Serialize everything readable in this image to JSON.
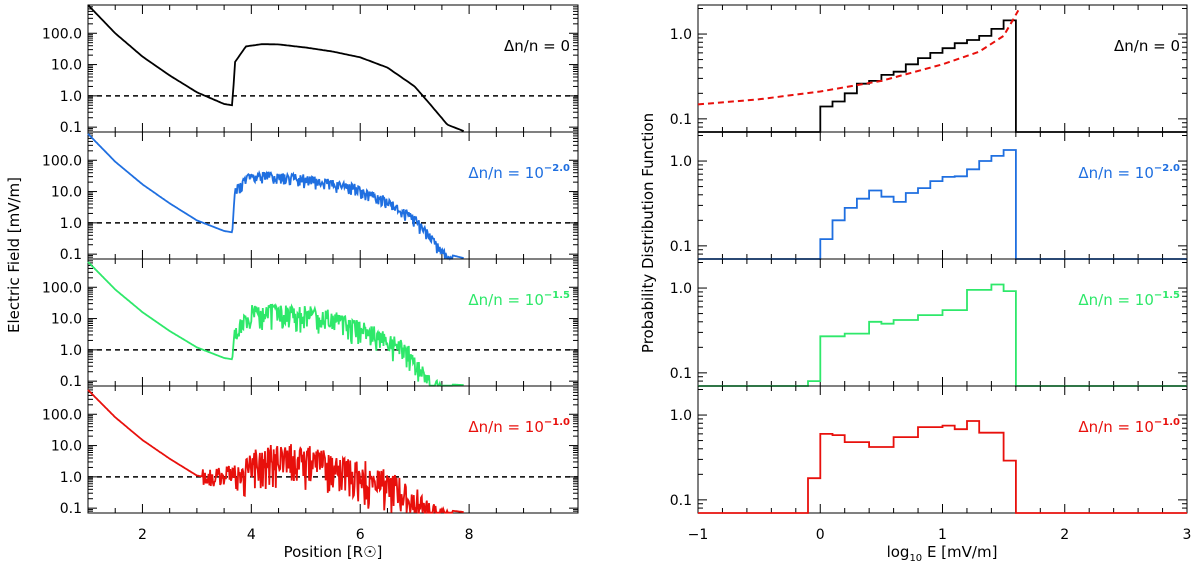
{
  "colors": {
    "black": "#000000",
    "blue": "#1f6fe0",
    "green": "#2ee86a",
    "red": "#e8100c",
    "red_dashed": "#e8100c"
  },
  "left": {
    "ylabel": "Electric Field [mV/m]",
    "xlabel_prefix": "Position [R",
    "xlabel_suffix": "]",
    "xticks": [
      "2",
      "4",
      "6",
      "8"
    ],
    "yticks": [
      "100.0",
      "10.0",
      "1.0",
      "0.1"
    ],
    "panel_labels": [
      {
        "prefix": "Δn/n = ",
        "value": "0",
        "exp": ""
      },
      {
        "prefix": "Δn/n = ",
        "value": "10",
        "exp": "−2.0"
      },
      {
        "prefix": "Δn/n = ",
        "value": "10",
        "exp": "−1.5"
      },
      {
        "prefix": "Δn/n = ",
        "value": "10",
        "exp": "−1.0"
      }
    ]
  },
  "right": {
    "ylabel": "Probability Distribution Function",
    "xlabel_pre": "log",
    "xlabel_sub": "10",
    "xlabel_post": " E [mV/m]",
    "xticks": [
      "−1",
      "0",
      "1",
      "2",
      "3"
    ],
    "yticks": [
      "1.0",
      "0.1"
    ],
    "panel_labels": [
      {
        "prefix": "Δn/n = ",
        "value": "0",
        "exp": ""
      },
      {
        "prefix": "Δn/n = ",
        "value": "10",
        "exp": "−2.0"
      },
      {
        "prefix": "Δn/n = ",
        "value": "10",
        "exp": "−1.5"
      },
      {
        "prefix": "Δn/n = ",
        "value": "10",
        "exp": "−1.0"
      }
    ]
  },
  "chart_data": [
    {
      "type": "line",
      "panel": "left",
      "xlabel": "Position [R☉]",
      "ylabel": "Electric Field [mV/m]",
      "xlim": [
        1,
        10
      ],
      "ylim": [
        0.07,
        800
      ],
      "yscale": "log",
      "reference_line": {
        "y": 1.0,
        "style": "dashed"
      },
      "series": [
        {
          "name": "Δn/n = 0",
          "color": "#000000",
          "noise": 0,
          "x": [
            1.0,
            1.5,
            2.0,
            2.5,
            3.0,
            3.5,
            3.65,
            3.7,
            3.9,
            4.2,
            4.5,
            5.0,
            5.5,
            6.0,
            6.5,
            7.0,
            7.3,
            7.6,
            7.9
          ],
          "y": [
            800,
            100,
            18,
            4.5,
            1.3,
            0.55,
            0.5,
            12,
            38,
            45,
            44,
            35,
            26,
            17,
            8,
            2,
            0.5,
            0.12,
            0.075
          ]
        },
        {
          "name": "Δn/n = 10^-2.0",
          "color": "#1f6fe0",
          "noise": 0.25,
          "x": [
            1.0,
            1.5,
            2.0,
            2.5,
            3.0,
            3.5,
            3.65,
            3.7,
            3.9,
            4.2,
            4.5,
            5.0,
            5.5,
            6.0,
            6.5,
            7.0,
            7.3,
            7.6,
            7.9
          ],
          "y": [
            700,
            90,
            17,
            4.2,
            1.2,
            0.55,
            0.5,
            12,
            35,
            42,
            40,
            32,
            24,
            15,
            6,
            1.8,
            0.4,
            0.1,
            0.075
          ]
        },
        {
          "name": "Δn/n = 10^-1.5",
          "color": "#2ee86a",
          "noise": 0.55,
          "x": [
            1.0,
            1.5,
            2.0,
            2.5,
            3.0,
            3.5,
            3.65,
            3.7,
            4.0,
            4.5,
            5.0,
            5.5,
            6.0,
            6.5,
            6.9,
            7.2,
            7.5,
            7.9
          ],
          "y": [
            650,
            85,
            16,
            4,
            1.2,
            0.55,
            0.5,
            6,
            25,
            28,
            22,
            15,
            8,
            3.5,
            1.5,
            0.2,
            0.08,
            0.075
          ]
        },
        {
          "name": "Δn/n = 10^-1.0",
          "color": "#e8100c",
          "noise": 0.85,
          "x": [
            1.0,
            1.5,
            2.0,
            2.5,
            3.0,
            3.3,
            3.6,
            4.0,
            4.5,
            5.0,
            5.5,
            6.0,
            6.5,
            6.9,
            7.2,
            7.5,
            7.9
          ],
          "y": [
            600,
            80,
            15,
            3.8,
            1.1,
            0.9,
            1.2,
            6,
            10,
            8,
            6,
            3,
            1.5,
            0.6,
            0.2,
            0.09,
            0.075
          ]
        }
      ]
    },
    {
      "type": "line",
      "panel": "right",
      "xlabel": "log10 E [mV/m]",
      "ylabel": "Probability Distribution Function",
      "xlim": [
        -1,
        3
      ],
      "ylim": [
        0.07,
        2.2
      ],
      "yscale": "log",
      "step": true,
      "floor": 0.07,
      "series": [
        {
          "name": "Δn/n = 0",
          "color": "#000000",
          "edges": [
            -1.0,
            0.0,
            0.1,
            0.2,
            0.3,
            0.4,
            0.5,
            0.6,
            0.7,
            0.8,
            0.9,
            1.0,
            1.1,
            1.2,
            1.3,
            1.4,
            1.5,
            1.6,
            3.0
          ],
          "values": [
            0.07,
            0.14,
            0.16,
            0.2,
            0.26,
            0.28,
            0.33,
            0.36,
            0.44,
            0.52,
            0.6,
            0.68,
            0.78,
            0.85,
            0.95,
            1.15,
            1.45,
            0.07
          ],
          "theory": {
            "color": "#e8100c",
            "style": "dashed",
            "x": [
              -1.0,
              -0.5,
              0.0,
              0.5,
              1.0,
              1.3,
              1.5,
              1.58,
              1.62
            ],
            "y": [
              0.148,
              0.17,
              0.21,
              0.28,
              0.44,
              0.62,
              0.95,
              1.5,
              1.9
            ]
          }
        },
        {
          "name": "Δn/n = 10^-2.0",
          "color": "#1f6fe0",
          "edges": [
            -1.0,
            0.0,
            0.1,
            0.2,
            0.3,
            0.4,
            0.5,
            0.6,
            0.7,
            0.8,
            0.9,
            1.0,
            1.1,
            1.2,
            1.3,
            1.4,
            1.5,
            1.6,
            3.0
          ],
          "values": [
            0.07,
            0.12,
            0.2,
            0.28,
            0.36,
            0.45,
            0.38,
            0.33,
            0.42,
            0.48,
            0.58,
            0.65,
            0.66,
            0.8,
            1.0,
            1.15,
            1.35,
            0.07
          ]
        },
        {
          "name": "Δn/n = 10^-1.5",
          "color": "#2ee86a",
          "edges": [
            -1.0,
            -0.2,
            -0.1,
            0.0,
            0.2,
            0.4,
            0.5,
            0.6,
            0.8,
            1.0,
            1.2,
            1.4,
            1.5,
            1.6,
            1.8,
            3.0
          ],
          "values": [
            0.07,
            0.07,
            0.08,
            0.27,
            0.29,
            0.4,
            0.38,
            0.42,
            0.48,
            0.55,
            0.95,
            1.1,
            0.92,
            0.07,
            0.07
          ]
        },
        {
          "name": "Δn/n = 10^-1.0",
          "color": "#e8100c",
          "edges": [
            -1.0,
            -0.2,
            -0.1,
            0.0,
            0.1,
            0.2,
            0.4,
            0.6,
            0.8,
            1.0,
            1.1,
            1.2,
            1.3,
            1.5,
            1.6,
            1.8,
            3.0
          ],
          "values": [
            0.07,
            0.07,
            0.18,
            0.6,
            0.58,
            0.48,
            0.42,
            0.55,
            0.72,
            0.75,
            0.68,
            0.85,
            0.62,
            0.29,
            0.07,
            0.07
          ]
        }
      ]
    }
  ]
}
